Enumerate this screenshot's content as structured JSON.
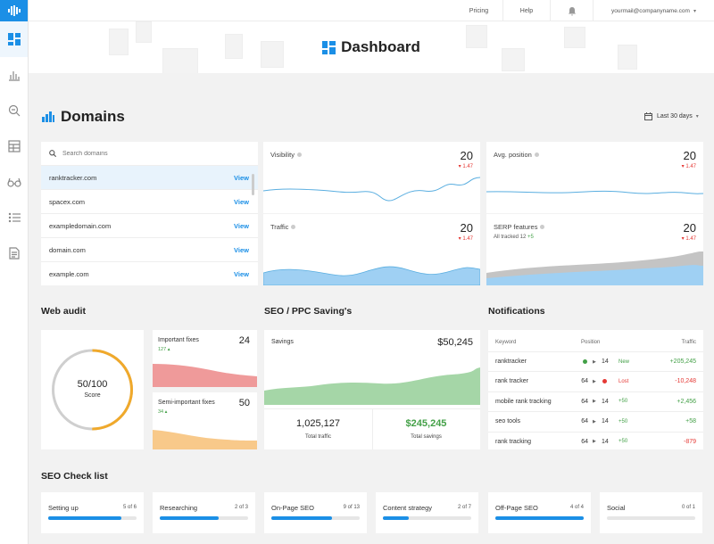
{
  "topbar": {
    "pricing": "Pricing",
    "help": "Help",
    "account": "yourmail@companyname.com"
  },
  "hero": {
    "title": "Dashboard"
  },
  "domains": {
    "title": "Domains",
    "date_range": "Last 30 days",
    "search_placeholder": "Search domains",
    "list": [
      {
        "name": "ranktracker.com",
        "action": "View"
      },
      {
        "name": "spacex.com",
        "action": "View"
      },
      {
        "name": "exampledomain.com",
        "action": "View"
      },
      {
        "name": "domain.com",
        "action": "View"
      },
      {
        "name": "example.com",
        "action": "View"
      }
    ]
  },
  "metrics": {
    "visibility": {
      "label": "Visibility",
      "value": "20",
      "delta": "1.47"
    },
    "avg_position": {
      "label": "Avg. position",
      "value": "20",
      "delta": "1.47"
    },
    "traffic": {
      "label": "Traffic",
      "value": "20",
      "delta": "1.47"
    },
    "serp": {
      "label": "SERP features",
      "value": "20",
      "delta": "1.47",
      "sub": "All tracked 12",
      "sub_delta": "+5"
    }
  },
  "web_audit": {
    "title": "Web audit",
    "score": "50/100",
    "score_label": "Score",
    "score_fraction": 0.5,
    "important": {
      "label": "Important fixes",
      "value": "24",
      "delta": "127"
    },
    "semi": {
      "label": "Semi-important fixes",
      "value": "50",
      "delta": "34"
    }
  },
  "seo_ppc": {
    "title": "SEO / PPC Saving's",
    "savings_label": "Savings",
    "savings_value": "$50,245",
    "traffic_value": "1,025,127",
    "traffic_label": "Total traffic",
    "total_savings_value": "$245,245",
    "total_savings_label": "Total savings"
  },
  "notifications": {
    "title": "Notifications",
    "headers": {
      "keyword": "Keyword",
      "position": "Position",
      "traffic": "Traffic"
    },
    "rows": [
      {
        "keyword": "ranktracker",
        "from": "",
        "to": "14",
        "tag": "New",
        "traffic": "+205,245",
        "tag_color": "#43a047",
        "traffic_color": "#43a047"
      },
      {
        "keyword": "rank tracker",
        "from": "64",
        "to": "",
        "tag": "Lost",
        "traffic": "-10,248",
        "tag_color": "#e53935",
        "traffic_color": "#e53935"
      },
      {
        "keyword": "mobile rank tracking",
        "from": "64",
        "to": "14",
        "tag": "+50",
        "traffic": "+2,456",
        "tag_color": "#43a047",
        "traffic_color": "#43a047"
      },
      {
        "keyword": "seo tools",
        "from": "64",
        "to": "14",
        "tag": "+50",
        "traffic": "+58",
        "tag_color": "#43a047",
        "traffic_color": "#43a047"
      },
      {
        "keyword": "rank tracking",
        "from": "64",
        "to": "14",
        "tag": "+50",
        "traffic": "-879",
        "tag_color": "#43a047",
        "traffic_color": "#e53935"
      }
    ]
  },
  "checklist": {
    "title": "SEO Check list",
    "items": [
      {
        "label": "Setting up",
        "count": "5 of 6",
        "progress": 0.83
      },
      {
        "label": "Researching",
        "count": "2 of 3",
        "progress": 0.67
      },
      {
        "label": "On-Page SEO",
        "count": "9 of 13",
        "progress": 0.69
      },
      {
        "label": "Content strategy",
        "count": "2 of 7",
        "progress": 0.29
      },
      {
        "label": "Off-Page SEO",
        "count": "4 of 4",
        "progress": 1.0
      },
      {
        "label": "Social",
        "count": "0 of 1",
        "progress": 0.0
      }
    ]
  },
  "colors": {
    "accent": "#1b8fe6",
    "positive": "#43a047",
    "negative": "#e53935",
    "gauge": "#f0a92b"
  }
}
